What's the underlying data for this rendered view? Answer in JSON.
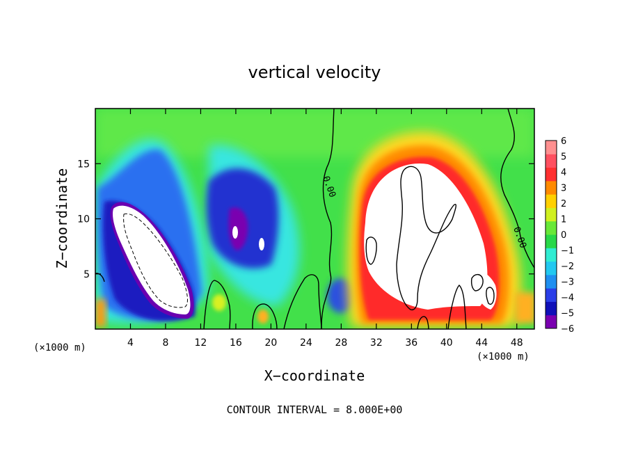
{
  "chart_data": {
    "type": "heatmap",
    "title": "vertical velocity",
    "xlabel": "X−coordinate",
    "ylabel": "Z−coordinate",
    "x_unit_left": "(×1000 m)",
    "x_unit_right": "(×1000 m)",
    "xlim": [
      0,
      50
    ],
    "ylim": [
      0,
      20
    ],
    "x_ticks": [
      4,
      8,
      12,
      16,
      20,
      24,
      28,
      32,
      36,
      40,
      44,
      48
    ],
    "y_ticks": [
      5,
      10,
      15
    ],
    "colorbar": {
      "range": [
        -6,
        6
      ],
      "ticks": [
        "6",
        "5",
        "4",
        "3",
        "2",
        "1",
        "0",
        "−1",
        "−2",
        "−3",
        "−4",
        "−5",
        "−6"
      ],
      "colors": [
        "#7a00b0",
        "#1010b8",
        "#2a3ee8",
        "#1f8ff0",
        "#22c8f0",
        "#30ecd2",
        "#28d848",
        "#68e838",
        "#d0f020",
        "#ffd000",
        "#ff8a00",
        "#ff3030",
        "#ff5060",
        "#ff9090"
      ]
    },
    "contour_labels": [
      "0.00",
      "0.00"
    ],
    "contour_interval_text": "CONTOUR INTERVAL = 8.000E+00"
  }
}
